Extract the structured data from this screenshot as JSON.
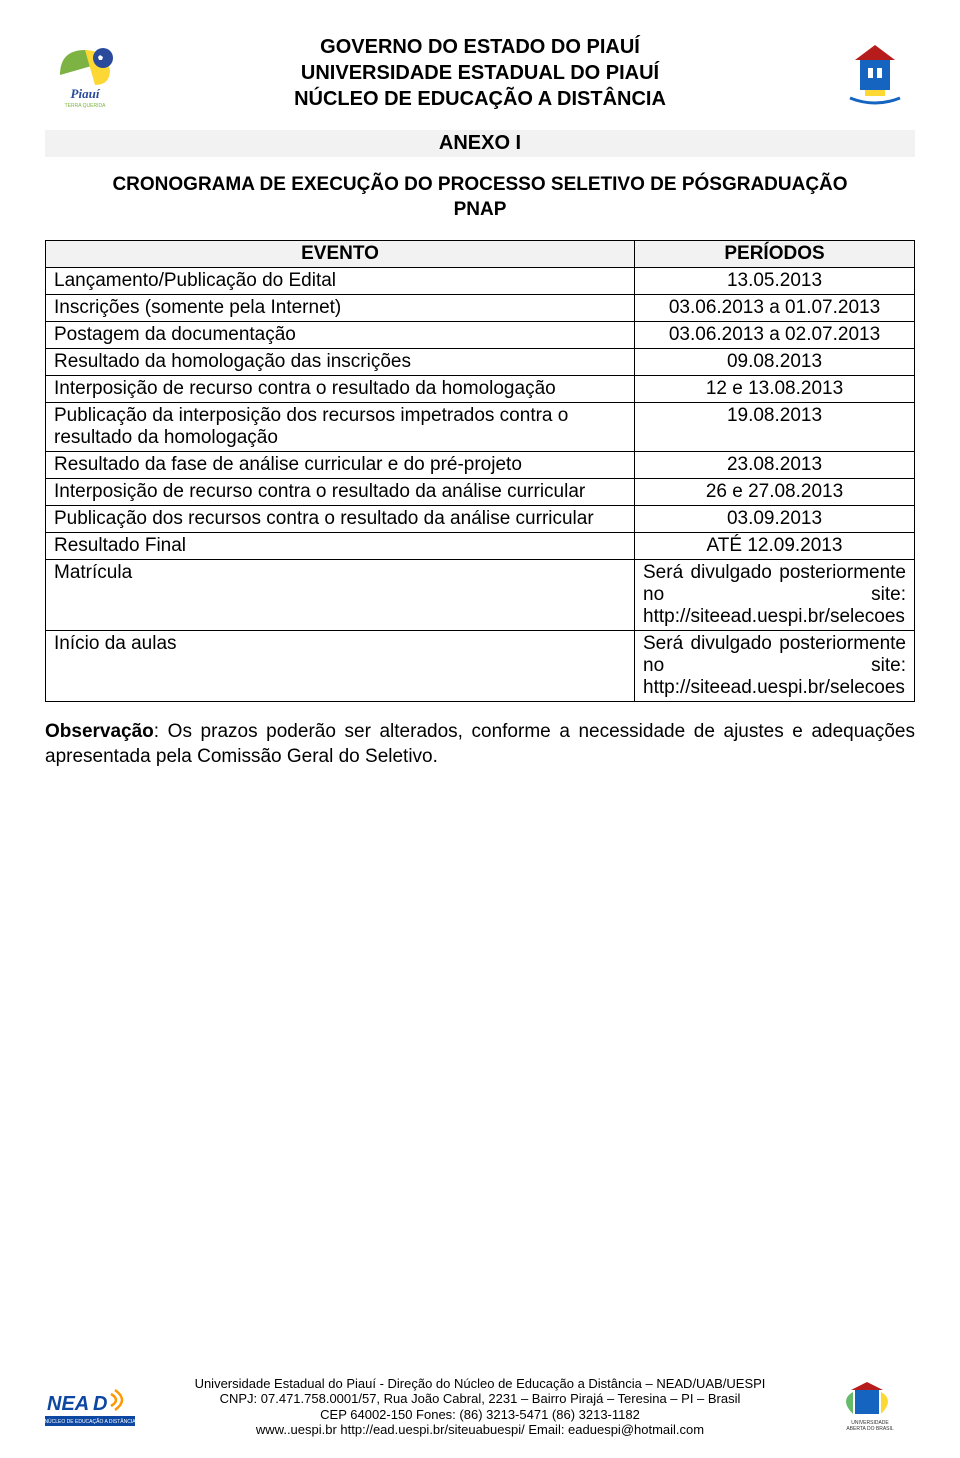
{
  "header": {
    "line1": "GOVERNO DO ESTADO DO PIAUÍ",
    "line2": "UNIVERSIDADE ESTADUAL DO PIAUÍ",
    "line3": "NÚCLEO DE EDUCAÇÃO A DISTÂNCIA"
  },
  "anexo": "ANEXO I",
  "cronograma_title_line1": "CRONOGRAMA DE EXECUÇÃO DO PROCESSO SELETIVO DE PÓSGRADUAÇÃO",
  "cronograma_title_line2": "PNAP",
  "table": {
    "col_evento": "EVENTO",
    "col_periodos": "PERÍODOS",
    "rows": [
      {
        "evento": "Lançamento/Publicação do Edital",
        "periodo": "13.05.2013",
        "justify": false,
        "pleft": false
      },
      {
        "evento": "Inscrições (somente pela Internet)",
        "periodo": "03.06.2013 a 01.07.2013",
        "justify": false,
        "pleft": false
      },
      {
        "evento": "Postagem da documentação",
        "periodo": "03.06.2013 a 02.07.2013",
        "justify": false,
        "pleft": false
      },
      {
        "evento": "Resultado da homologação das inscrições",
        "periodo": "09.08.2013",
        "justify": false,
        "pleft": false
      },
      {
        "evento": "Interposição de recurso contra o resultado da homologação",
        "periodo": "12 e 13.08.2013",
        "justify": false,
        "pleft": false
      },
      {
        "evento": "Publicação da interposição dos recursos impetrados contra o resultado da homologação",
        "periodo": "19.08.2013",
        "justify": false,
        "pleft": false
      },
      {
        "evento": "Resultado da fase de análise curricular e do pré-projeto",
        "periodo": "23.08.2013",
        "justify": false,
        "pleft": false
      },
      {
        "evento": "Interposição de recurso contra o resultado da análise curricular",
        "periodo": "26 e 27.08.2013",
        "justify": true,
        "pleft": false
      },
      {
        "evento": "Publicação dos recursos contra o resultado da análise curricular",
        "periodo": "03.09.2013",
        "justify": true,
        "pleft": false
      },
      {
        "evento": "Resultado Final",
        "periodo": "ATÉ 12.09.2013",
        "justify": false,
        "pleft": false
      },
      {
        "evento": "Matrícula",
        "periodo": "Será divulgado posteriormente no site: http://siteead.uespi.br/selecoes",
        "justify": false,
        "pleft": true
      },
      {
        "evento": "Início da aulas",
        "periodo": "Será divulgado posteriormente no site: http://siteead.uespi.br/selecoes",
        "justify": false,
        "pleft": true
      }
    ]
  },
  "obs_label": "Observação",
  "obs_text": ": Os prazos poderão ser alterados, conforme a necessidade de ajustes e adequações apresentada pela Comissão Geral do Seletivo.",
  "footer": {
    "line1": "Universidade Estadual do Piauí - Direção do Núcleo de Educação a Distância – NEAD/UAB/UESPI",
    "line2": "CNPJ: 07.471.758.0001/57,  Rua João Cabral, 2231 – Bairro Pirajá –  Teresina – PI – Brasil",
    "line3": "CEP 64002-150  Fones: (86) 3213-5471 (86) 3213-1182",
    "line4": "www..uespi.br  http://ead.uespi.br/siteuabuespi/   Email: eaduespi@hotmail.com"
  },
  "colors": {
    "light_gray": "#f2f2f2",
    "piaui_blue": "#2a4b9b",
    "piaui_green": "#7cb342",
    "piaui_yellow": "#fdd835",
    "uespi_red": "#b71c1c",
    "uespi_blue": "#1565c0",
    "nead_blue": "#0d47a1",
    "nead_orange": "#ff9800",
    "uab_green": "#66bb6a",
    "uab_yellow": "#fdd835"
  }
}
